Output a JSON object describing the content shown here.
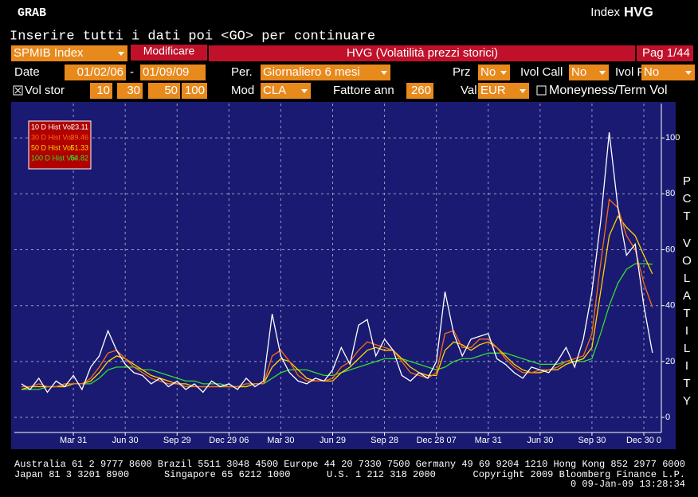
{
  "header": {
    "app": "GRAB",
    "function_prefix": "Index",
    "function": "HVG",
    "prompt": "Inserire tutti i dati poi <GO> per continuare"
  },
  "toolbar": {
    "security": "SPMIB Index",
    "button": "Modificare",
    "screen_title": "HVG (Volatilità prezzi storici)",
    "page": "Pag 1/44"
  },
  "settings": {
    "date_label": "Date",
    "start": "01/02/06",
    "separator": "-",
    "end": "01/09/09",
    "period_label": "Per.",
    "period": "Giornaliero 6 mesi",
    "prz_label": "Prz",
    "prz": "No",
    "ivol_call_label": "Ivol Call",
    "ivol_call": "No",
    "ivol_put_label": "Ivol Put",
    "ivol_put": "No",
    "vol_label": "Vol stor",
    "windows": [
      "10",
      "30",
      "50",
      "100"
    ],
    "mod_label": "Mod",
    "mod": "CLA",
    "factor_label": "Fattore ann",
    "factor": "260",
    "val_label": "Val",
    "val": "EUR",
    "moneyness": "Moneyness/Term Vol"
  },
  "chart_data": {
    "type": "line",
    "y_label": "PCT VOLATILITY",
    "categories": [
      null,
      null,
      null,
      null,
      null,
      null,
      "Mar 31",
      null,
      null,
      null,
      null,
      null,
      "Jun 30",
      null,
      null,
      null,
      null,
      null,
      "Sep 29",
      null,
      null,
      null,
      null,
      null,
      "Dec 29 06",
      null,
      null,
      null,
      null,
      null,
      "Mar 30",
      null,
      null,
      null,
      null,
      null,
      "Jun 29",
      null,
      null,
      null,
      null,
      null,
      "Sep 28",
      null,
      null,
      null,
      null,
      null,
      "Dec 28 07",
      null,
      null,
      null,
      null,
      null,
      "Mar 31",
      null,
      null,
      null,
      null,
      null,
      "Jun 30",
      null,
      null,
      null,
      null,
      null,
      "Sep 30",
      null,
      null,
      null,
      null,
      null,
      "Dec 30 0",
      null
    ],
    "series": [
      {
        "name": "10 D Hist Vol",
        "color": "#ffffff",
        "values": [
          12,
          10,
          14,
          9,
          13,
          11,
          15,
          10,
          18,
          22,
          31,
          24,
          19,
          16,
          15,
          12,
          14,
          11,
          13,
          10,
          12,
          9,
          13,
          11,
          12,
          10,
          14,
          11,
          13,
          37,
          22,
          16,
          13,
          12,
          14,
          13,
          17,
          25,
          19,
          33,
          35,
          22,
          28,
          24,
          15,
          13,
          16,
          14,
          20,
          45,
          30,
          22,
          28,
          29,
          30,
          21,
          19,
          16,
          14,
          18,
          17,
          16,
          20,
          25,
          18,
          28,
          45,
          70,
          102,
          75,
          58,
          62,
          40,
          23.11
        ]
      },
      {
        "name": "30 D Hist Vol",
        "color": "#ff6a10",
        "values": [
          11,
          11,
          12,
          11,
          11,
          12,
          12,
          12,
          14,
          18,
          23,
          24,
          21,
          18,
          16,
          14,
          13,
          12,
          12,
          11,
          11,
          11,
          11,
          11,
          11,
          11,
          12,
          12,
          12,
          22,
          24,
          20,
          15,
          13,
          13,
          13,
          14,
          18,
          20,
          24,
          27,
          26,
          25,
          24,
          20,
          16,
          15,
          14,
          16,
          30,
          31,
          25,
          25,
          28,
          28,
          25,
          21,
          18,
          16,
          16,
          17,
          17,
          18,
          20,
          21,
          22,
          30,
          55,
          78,
          75,
          65,
          60,
          48,
          39.46
        ]
      },
      {
        "name": "50 D Hist Vol",
        "color": "#ffd400",
        "values": [
          10,
          11,
          11,
          11,
          11,
          11,
          12,
          12,
          13,
          16,
          20,
          22,
          21,
          19,
          17,
          15,
          14,
          13,
          12,
          12,
          11,
          11,
          11,
          11,
          11,
          11,
          11,
          12,
          12,
          18,
          21,
          20,
          17,
          14,
          13,
          13,
          13,
          16,
          18,
          21,
          24,
          25,
          24,
          24,
          21,
          18,
          16,
          15,
          15,
          24,
          27,
          26,
          24,
          26,
          27,
          25,
          22,
          19,
          17,
          16,
          16,
          17,
          17,
          19,
          20,
          21,
          25,
          45,
          65,
          72,
          68,
          65,
          58,
          51.33
        ]
      },
      {
        "name": "100 D Hist Vol",
        "color": "#33dd33",
        "values": [
          10,
          10,
          10,
          11,
          11,
          11,
          12,
          12,
          12,
          14,
          17,
          18,
          18,
          18,
          17,
          17,
          16,
          15,
          14,
          13,
          13,
          12,
          12,
          12,
          11,
          11,
          11,
          12,
          12,
          14,
          16,
          17,
          17,
          17,
          16,
          15,
          15,
          16,
          17,
          18,
          19,
          20,
          21,
          21,
          21,
          20,
          19,
          18,
          17,
          18,
          20,
          21,
          21,
          22,
          23,
          23,
          23,
          22,
          21,
          20,
          19,
          19,
          19,
          20,
          20,
          20,
          21,
          30,
          40,
          48,
          53,
          55,
          55,
          54.82
        ]
      }
    ],
    "ylim": [
      -5.4,
      112.3
    ],
    "yticks": [
      0,
      20,
      40,
      60,
      80,
      100
    ],
    "grid": true,
    "legend": "upper left"
  },
  "footer": {
    "contacts_line": "Australia 61 2 9777 8600 Brazil 5511 3048 4500 Europe 44 20 7330 7500 Germany 49 69 9204 1210 Hong Kong 852 2977 6000",
    "japan": "Japan 81 3 3201 8900",
    "singapore": "Singapore 65 6212 1000",
    "us": "U.S. 1 212 318 2000",
    "copyright": "Copyright 2009 Bloomberg Finance L.P.",
    "timestamp": "0 09-Jan-09 13:28:34"
  }
}
